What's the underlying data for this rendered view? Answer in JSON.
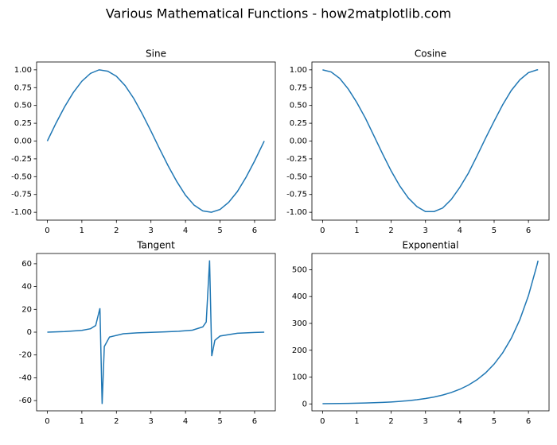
{
  "title": "Various Mathematical Functions - how2matplotlib.com",
  "chart_data": [
    {
      "type": "line",
      "title": "Sine",
      "color": "#1f77b4",
      "x": [
        0,
        0.25,
        0.5,
        0.75,
        1,
        1.25,
        1.5,
        1.75,
        2,
        2.25,
        2.5,
        2.75,
        3,
        3.25,
        3.5,
        3.75,
        4,
        4.25,
        4.5,
        4.75,
        5,
        5.25,
        5.5,
        5.75,
        6,
        6.25,
        6.28
      ],
      "values": [
        0,
        0.25,
        0.48,
        0.68,
        0.84,
        0.95,
        1.0,
        0.98,
        0.91,
        0.78,
        0.6,
        0.38,
        0.14,
        -0.11,
        -0.35,
        -0.57,
        -0.76,
        -0.9,
        -0.98,
        -1.0,
        -0.96,
        -0.86,
        -0.71,
        -0.51,
        -0.28,
        -0.03,
        0
      ],
      "xlim": [
        -0.31,
        6.6
      ],
      "ylim": [
        -1.11,
        1.11
      ],
      "xticks": [
        0,
        1,
        2,
        3,
        4,
        5,
        6
      ],
      "yticks": [
        {
          "value": -1,
          "label": "-1.00"
        },
        {
          "value": -0.75,
          "label": "-0.75"
        },
        {
          "value": -0.5,
          "label": "-0.50"
        },
        {
          "value": -0.25,
          "label": "-0.25"
        },
        {
          "value": 0,
          "label": "0.00"
        },
        {
          "value": 0.25,
          "label": "0.25"
        },
        {
          "value": 0.5,
          "label": "0.50"
        },
        {
          "value": 0.75,
          "label": "0.75"
        },
        {
          "value": 1,
          "label": "1.00"
        }
      ]
    },
    {
      "type": "line",
      "title": "Cosine",
      "color": "#1f77b4",
      "x": [
        0,
        0.25,
        0.5,
        0.75,
        1,
        1.25,
        1.5,
        1.75,
        2,
        2.25,
        2.5,
        2.75,
        3,
        3.25,
        3.5,
        3.75,
        4,
        4.25,
        4.5,
        4.75,
        5,
        5.25,
        5.5,
        5.75,
        6,
        6.25,
        6.28
      ],
      "values": [
        1.0,
        0.97,
        0.88,
        0.73,
        0.54,
        0.32,
        0.07,
        -0.18,
        -0.42,
        -0.63,
        -0.8,
        -0.92,
        -0.99,
        -0.99,
        -0.94,
        -0.82,
        -0.65,
        -0.45,
        -0.21,
        0.04,
        0.28,
        0.51,
        0.71,
        0.86,
        0.96,
        1.0,
        1.0
      ],
      "xlim": [
        -0.31,
        6.6
      ],
      "ylim": [
        -1.11,
        1.11
      ],
      "xticks": [
        0,
        1,
        2,
        3,
        4,
        5,
        6
      ],
      "yticks": [
        {
          "value": -1,
          "label": "-1.00"
        },
        {
          "value": -0.75,
          "label": "-0.75"
        },
        {
          "value": -0.5,
          "label": "-0.50"
        },
        {
          "value": -0.25,
          "label": "-0.25"
        },
        {
          "value": 0,
          "label": "0.00"
        },
        {
          "value": 0.25,
          "label": "0.25"
        },
        {
          "value": 0.5,
          "label": "0.50"
        },
        {
          "value": 0.75,
          "label": "0.75"
        },
        {
          "value": 1,
          "label": "1.00"
        }
      ]
    },
    {
      "type": "line",
      "title": "Tangent",
      "color": "#1f77b4",
      "x": [
        0,
        0.5,
        1,
        1.25,
        1.4,
        1.523,
        1.587,
        1.65,
        1.8,
        2.2,
        2.6,
        3.0,
        3.4,
        3.8,
        4.2,
        4.5,
        4.6,
        4.697,
        4.76,
        4.85,
        5.0,
        5.5,
        6.0,
        6.28
      ],
      "values": [
        0,
        0.55,
        1.56,
        3.0,
        5.8,
        21,
        -63,
        -12.6,
        -4.3,
        -1.37,
        -0.6,
        -0.14,
        0.26,
        0.77,
        1.78,
        4.6,
        8.9,
        63,
        -21,
        -7.2,
        -3.4,
        -0.99,
        -0.29,
        0
      ],
      "xlim": [
        -0.31,
        6.6
      ],
      "ylim": [
        -69,
        69
      ],
      "xticks": [
        0,
        1,
        2,
        3,
        4,
        5,
        6
      ],
      "yticks": [
        {
          "value": -60,
          "label": "-60"
        },
        {
          "value": -40,
          "label": "-40"
        },
        {
          "value": -20,
          "label": "-20"
        },
        0,
        20,
        40,
        60
      ]
    },
    {
      "type": "line",
      "title": "Exponential",
      "color": "#1f77b4",
      "x": [
        0,
        0.25,
        0.5,
        0.75,
        1,
        1.25,
        1.5,
        1.75,
        2,
        2.25,
        2.5,
        2.75,
        3,
        3.25,
        3.5,
        3.75,
        4,
        4.25,
        4.5,
        4.75,
        5,
        5.25,
        5.5,
        5.75,
        6,
        6.25,
        6.28
      ],
      "values": [
        1,
        1.3,
        1.6,
        2.1,
        2.7,
        3.5,
        4.5,
        5.8,
        7.4,
        9.5,
        12.2,
        15.6,
        20.1,
        25.8,
        33.1,
        42.5,
        54.6,
        70.1,
        90.0,
        115.6,
        148.4,
        190.6,
        244.7,
        314.2,
        403.4,
        518.0,
        533.7
      ],
      "xlim": [
        -0.31,
        6.6
      ],
      "ylim": [
        -25.7,
        560.4
      ],
      "xticks": [
        0,
        1,
        2,
        3,
        4,
        5,
        6
      ],
      "yticks": [
        0,
        100,
        200,
        300,
        400,
        500
      ]
    }
  ]
}
